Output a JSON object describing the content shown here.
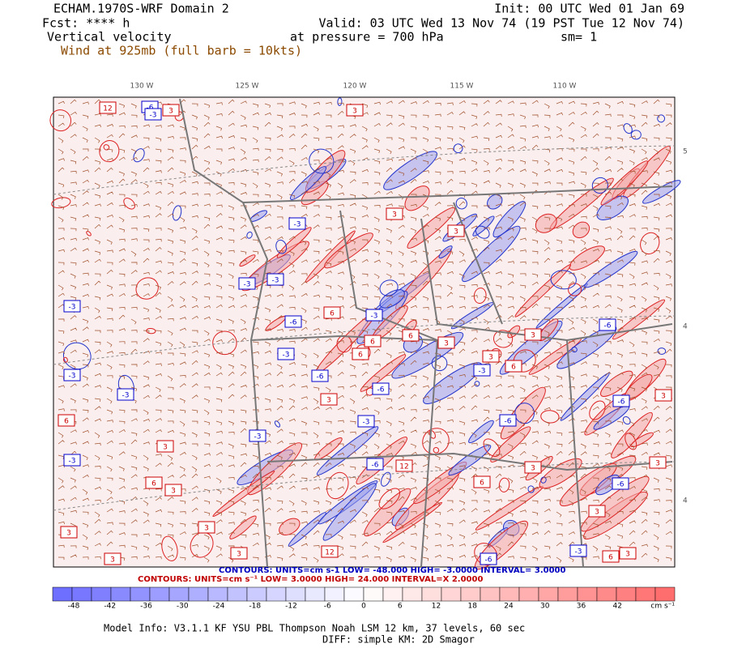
{
  "header": {
    "title": "ECHAM.1970S-WRF Domain 2",
    "init": "Init: 00 UTC Wed 01 Jan 69",
    "fcst": "Fcst: **** h",
    "valid": "Valid: 03 UTC Wed 13 Nov 74 (19 PST Tue 12 Nov 74)",
    "field": "Vertical velocity",
    "pressure": "at pressure =  700 hPa",
    "smooth": "sm= 1",
    "wind": "Wind at 925mb (full barb = 10kts)"
  },
  "map": {
    "lon_labels": [
      "130 W",
      "125 W",
      "120 W",
      "115 W",
      "110 W"
    ],
    "lat_labels": [
      "5",
      "4",
      "4"
    ],
    "contour_labels": [
      "12",
      "-6",
      "3",
      "3",
      "-3",
      "-3",
      "3",
      "3",
      "-3",
      "-3",
      "-3",
      "6",
      "-3",
      "-6",
      "6",
      "6",
      "3",
      "3",
      "-6",
      "-3",
      "6",
      "3",
      "-3",
      "-6",
      "-6",
      "-3",
      "6",
      "-3",
      "-3",
      "6",
      "3",
      "-3",
      "-6",
      "-6",
      "3",
      "3",
      "-3",
      "-6",
      "12",
      "3",
      "3",
      "6",
      "3",
      "-6",
      "6",
      "3",
      "3",
      "3",
      "3",
      "12",
      "-6",
      "-3",
      "6",
      "3",
      "3"
    ]
  },
  "contours": {
    "negative": "CONTOURS:  UNITS=cm s-1  LOW= -48.000     HIGH= -3.0000     INTERVAL= 3.0000",
    "positive": "CONTOURS:  UNITS=cm s⁻¹  LOW=  3.0000     HIGH=  24.000     INTERVAL=X  2.0000"
  },
  "colorbar": {
    "labels": [
      "-48",
      "-42",
      "-36",
      "-30",
      "-24",
      "-18",
      "-12",
      "-6",
      "0",
      "6",
      "12",
      "18",
      "24",
      "30",
      "36",
      "42"
    ],
    "units": "cm s⁻¹"
  },
  "footer": {
    "model": "Model Info: V3.1.1    KF       YSU PBL   Thompson     Noah LSM   12 km,    37 levels,    60 sec",
    "diff": "DIFF: simple KM: 2D Smagor"
  }
}
